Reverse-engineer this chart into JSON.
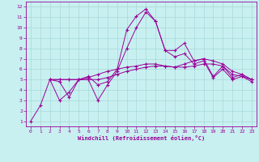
{
  "xlabel": "Windchill (Refroidissement éolien,°C)",
  "bg_color": "#c8f0f0",
  "grid_color": "#a8d8d8",
  "line_color": "#990099",
  "xlim": [
    -0.5,
    23.5
  ],
  "ylim": [
    0.5,
    12.5
  ],
  "xticks": [
    0,
    1,
    2,
    3,
    4,
    5,
    6,
    7,
    8,
    9,
    10,
    11,
    12,
    13,
    14,
    15,
    16,
    17,
    18,
    19,
    20,
    21,
    22,
    23
  ],
  "yticks": [
    1,
    2,
    3,
    4,
    5,
    6,
    7,
    8,
    9,
    10,
    11,
    12
  ],
  "line1_x": [
    0,
    1,
    2,
    3,
    4,
    5,
    6,
    7,
    8,
    9,
    10,
    11,
    12,
    13,
    14,
    15,
    16,
    17,
    18,
    19,
    20,
    21,
    22,
    23
  ],
  "line1_y": [
    1.0,
    2.5,
    5.0,
    4.8,
    3.3,
    5.0,
    5.3,
    4.5,
    4.8,
    6.0,
    9.8,
    11.1,
    11.8,
    10.6,
    7.8,
    7.8,
    8.5,
    6.8,
    7.0,
    5.3,
    6.3,
    5.2,
    5.5,
    5.0
  ],
  "line2_x": [
    2,
    3,
    4,
    5,
    6,
    7,
    8,
    9,
    10,
    11,
    12,
    13,
    14,
    15,
    16,
    17,
    18,
    19,
    20,
    21,
    22,
    23
  ],
  "line2_y": [
    5.0,
    3.0,
    3.8,
    5.0,
    5.0,
    3.0,
    4.5,
    5.8,
    8.0,
    10.0,
    11.5,
    10.6,
    7.8,
    7.2,
    7.5,
    6.5,
    6.8,
    5.2,
    6.0,
    5.0,
    5.3,
    4.8
  ],
  "line3_x": [
    2,
    3,
    4,
    5,
    6,
    7,
    8,
    9,
    10,
    11,
    12,
    13,
    14,
    15,
    16,
    17,
    18,
    19,
    20,
    21,
    22,
    23
  ],
  "line3_y": [
    5.0,
    5.0,
    5.0,
    5.0,
    5.2,
    5.5,
    5.8,
    6.0,
    6.2,
    6.3,
    6.5,
    6.5,
    6.3,
    6.2,
    6.5,
    6.8,
    7.0,
    6.8,
    6.5,
    5.8,
    5.5,
    5.0
  ],
  "line4_x": [
    2,
    3,
    4,
    5,
    6,
    7,
    8,
    9,
    10,
    11,
    12,
    13,
    14,
    15,
    16,
    17,
    18,
    19,
    20,
    21,
    22,
    23
  ],
  "line4_y": [
    5.0,
    5.0,
    5.0,
    5.0,
    5.0,
    5.0,
    5.2,
    5.5,
    5.8,
    6.0,
    6.2,
    6.3,
    6.3,
    6.2,
    6.2,
    6.3,
    6.5,
    6.5,
    6.3,
    5.5,
    5.3,
    5.0
  ]
}
